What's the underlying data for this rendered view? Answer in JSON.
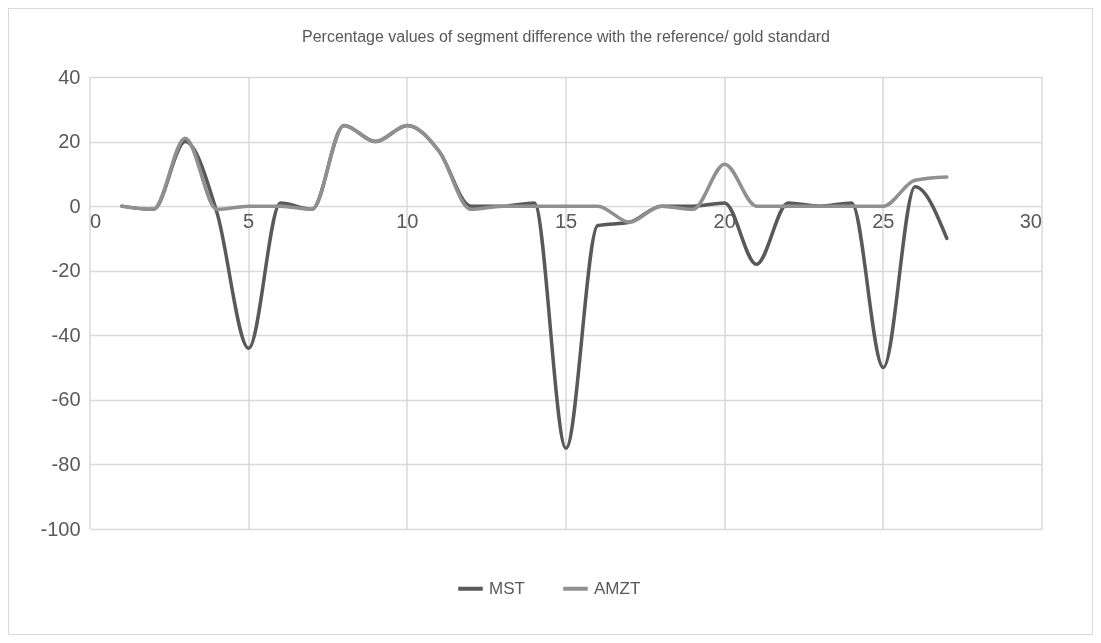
{
  "chart_data": {
    "type": "line",
    "title": "Percentage values of segment difference with the reference/ gold standard",
    "x": [
      1,
      2,
      3,
      4,
      5,
      6,
      7,
      8,
      9,
      10,
      11,
      12,
      13,
      14,
      15,
      16,
      17,
      18,
      19,
      20,
      21,
      22,
      23,
      24,
      25,
      26,
      27
    ],
    "series": [
      {
        "name": "MST",
        "color": "#595959",
        "values": [
          0,
          -1,
          20,
          -2,
          -44,
          1,
          -1,
          25,
          20,
          25,
          17,
          0,
          0,
          1,
          -75,
          -6,
          -5,
          0,
          0,
          1,
          -18,
          1,
          0,
          1,
          -50,
          6,
          -10
        ]
      },
      {
        "name": "AMZT",
        "color": "#909090",
        "values": [
          0,
          -1,
          21,
          -1,
          0,
          0,
          -1,
          25,
          20,
          25,
          17,
          -1,
          0,
          0,
          0,
          0,
          -5,
          0,
          -1,
          13,
          0,
          0,
          0,
          0,
          0,
          8,
          9
        ]
      }
    ],
    "xlim": [
      0,
      30
    ],
    "xticks": [
      0,
      5,
      10,
      15,
      20,
      25,
      30
    ],
    "ylim": [
      -100,
      40
    ],
    "yticks": [
      -100,
      -80,
      -60,
      -40,
      -20,
      0,
      20,
      40
    ],
    "grid": true,
    "legend": "bottom",
    "line_style": "solid",
    "marker": "none"
  }
}
